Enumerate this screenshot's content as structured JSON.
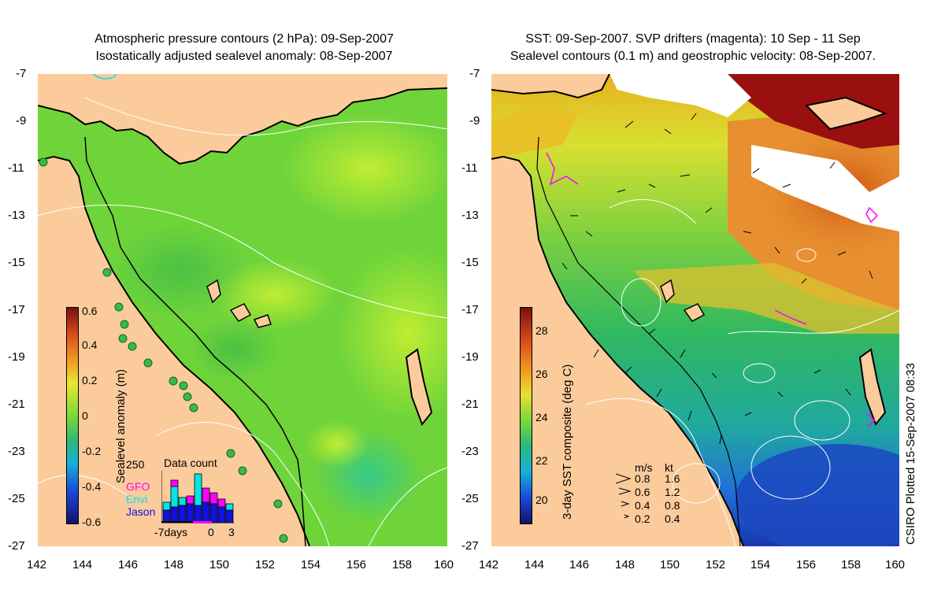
{
  "left_panel": {
    "title_line1": "Atmospheric pressure contours (2 hPa): 09-Sep-2007",
    "title_line2": "Isostatically adjusted sealevel anomaly: 08-Sep-2007",
    "colorbar_label": "Sealevel anomaly (m)",
    "colorbar_ticks": [
      "0.6",
      "0.4",
      "0.2",
      "0",
      "-0.2",
      "-0.4",
      "-0.6"
    ],
    "inset": {
      "title": "Data count",
      "y_max_label": "250",
      "x_labels": [
        "-7days",
        "0",
        "3"
      ],
      "legend": [
        {
          "label": "GFO",
          "color": "#ff00ff"
        },
        {
          "label": "Envi",
          "color": "#00e5e5"
        },
        {
          "label": "Jason",
          "color": "#1010e0"
        }
      ]
    }
  },
  "right_panel": {
    "title_line1": "SST: 09-Sep-2007. SVP drifters (magenta): 10 Sep - 11 Sep",
    "title_line2": "Sealevel contours (0.1 m) and geostrophic velocity: 08-Sep-2007.",
    "colorbar_label": "3-day SST composite (deg C)",
    "colorbar_ticks": [
      "28",
      "26",
      "24",
      "22",
      "20"
    ],
    "velocity_legend": {
      "header_ms": "m/s",
      "header_kt": "kt",
      "rows": [
        {
          "ms": "0.8",
          "kt": "1.6"
        },
        {
          "ms": "0.6",
          "kt": "1.2"
        },
        {
          "ms": "0.4",
          "kt": "0.8"
        },
        {
          "ms": "0.2",
          "kt": "0.4"
        }
      ]
    }
  },
  "axes": {
    "x_ticks": [
      "142",
      "144",
      "146",
      "148",
      "150",
      "152",
      "154",
      "156",
      "158",
      "160"
    ],
    "y_ticks": [
      "-7",
      "-9",
      "-11",
      "-13",
      "-15",
      "-17",
      "-19",
      "-21",
      "-23",
      "-25",
      "-27"
    ]
  },
  "credit": "CSIRO Plotted 15-Sep-2007 08:33",
  "colors": {
    "land": "#fccb9b",
    "sla_mid": "#6fd43a",
    "sst_warm": "#e08a2a",
    "sst_hot": "#a01010",
    "sst_cool": "#2050d0",
    "drifter": "#ff00ff"
  }
}
